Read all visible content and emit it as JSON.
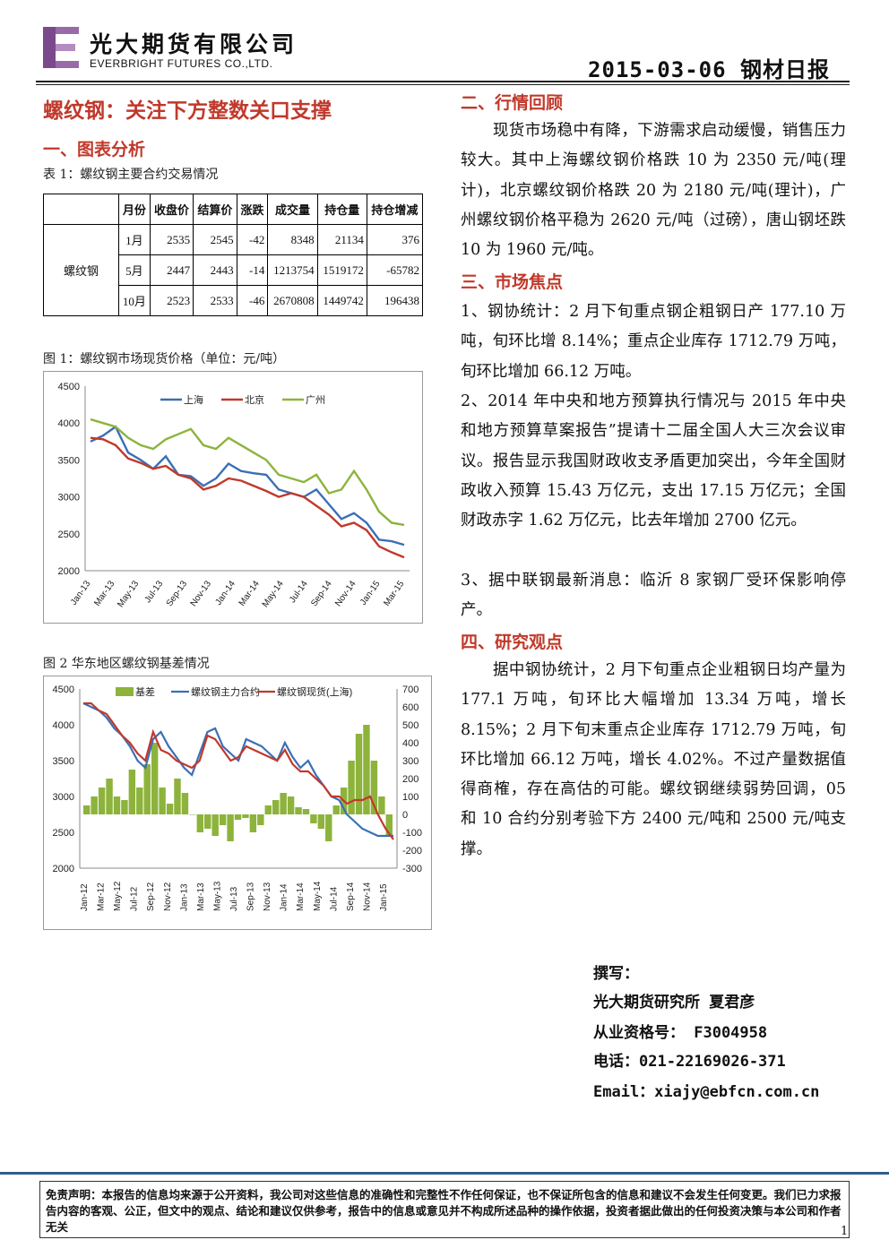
{
  "header": {
    "company_cn": "光大期货有限公司",
    "company_en": "EVERBRIGHT FUTURES CO.,LTD.",
    "date_report": "2015-03-06 钢材日报"
  },
  "title": "螺纹钢：关注下方整数关口支撑",
  "section1": {
    "heading": "一、图表分析",
    "table_caption": "表 1：螺纹钢主要合约交易情况"
  },
  "table": {
    "headers": [
      "月份",
      "收盘价",
      "结算价",
      "涨跌",
      "成交量",
      "持仓量",
      "持仓增减"
    ],
    "group_label": "螺纹钢",
    "rows": [
      [
        "1月",
        "2535",
        "2545",
        "-42",
        "8348",
        "21134",
        "376"
      ],
      [
        "5月",
        "2447",
        "2443",
        "-14",
        "1213754",
        "1519172",
        "-65782"
      ],
      [
        "10月",
        "2523",
        "2533",
        "-46",
        "2670808",
        "1449742",
        "196438"
      ]
    ]
  },
  "fig1": {
    "caption": "图 1：螺纹钢市场现货价格（单位：元/吨）"
  },
  "fig2": {
    "caption": "图 2 华东地区螺纹钢基差情况"
  },
  "chart_data": [
    {
      "type": "line",
      "title": "",
      "x_labels": [
        "Jan-13",
        "Mar-13",
        "May-13",
        "Jul-13",
        "Sep-13",
        "Nov-13",
        "Jan-14",
        "Mar-14",
        "May-14",
        "Jul-14",
        "Sep-14",
        "Nov-14",
        "Jan-15",
        "Mar-15"
      ],
      "ylim": [
        2000,
        4500
      ],
      "yticks": [
        "4500",
        "4000",
        "3500",
        "3000",
        "2500",
        "2000"
      ],
      "legend_position": "top",
      "series": [
        {
          "name": "上海",
          "color": "#3a6fb5",
          "values": [
            3750,
            3830,
            3950,
            3600,
            3500,
            3380,
            3550,
            3300,
            3280,
            3150,
            3250,
            3450,
            3350,
            3320,
            3300,
            3100,
            3050,
            3000,
            3100,
            2900,
            2700,
            2780,
            2650,
            2420,
            2400,
            2350
          ]
        },
        {
          "name": "北京",
          "color": "#c0392b",
          "values": [
            3800,
            3780,
            3700,
            3520,
            3460,
            3380,
            3420,
            3300,
            3250,
            3100,
            3150,
            3250,
            3220,
            3150,
            3080,
            3000,
            3050,
            3000,
            2880,
            2760,
            2600,
            2650,
            2550,
            2330,
            2250,
            2180
          ]
        },
        {
          "name": "广州",
          "color": "#8db33c",
          "values": [
            4050,
            4000,
            3950,
            3800,
            3700,
            3650,
            3780,
            3850,
            3920,
            3700,
            3650,
            3800,
            3700,
            3600,
            3500,
            3300,
            3250,
            3200,
            3300,
            3050,
            3100,
            3350,
            3100,
            2800,
            2650,
            2620
          ]
        }
      ]
    },
    {
      "type": "line",
      "title": "",
      "x_labels": [
        "Jan-12",
        "Mar-12",
        "May-12",
        "Jul-12",
        "Sep-12",
        "Nov-12",
        "Jan-13",
        "Mar-13",
        "May-13",
        "Jul-13",
        "Sep-13",
        "Nov-13",
        "Jan-14",
        "Mar-14",
        "May-14",
        "Jul-14",
        "Sep-14",
        "Nov-14",
        "Jan-15"
      ],
      "ylim_left": [
        2000,
        4500
      ],
      "ylim_right": [
        -300,
        700
      ],
      "yticks_left": [
        "4500",
        "4000",
        "3500",
        "3000",
        "2500",
        "2000"
      ],
      "yticks_right": [
        "700",
        "600",
        "500",
        "400",
        "300",
        "200",
        "100",
        "0",
        "-100",
        "-200",
        "-300"
      ],
      "legend_position": "top",
      "series": [
        {
          "name": "基差",
          "type": "bar",
          "axis": "right",
          "color": "#8db33c",
          "values": [
            50,
            100,
            150,
            200,
            100,
            80,
            250,
            150,
            280,
            400,
            150,
            60,
            200,
            120,
            0,
            -100,
            -80,
            -120,
            -60,
            -150,
            -30,
            -20,
            -100,
            -60,
            50,
            80,
            120,
            100,
            40,
            30,
            -50,
            -80,
            -150,
            50,
            150,
            300,
            450,
            500,
            300,
            100,
            -120
          ]
        },
        {
          "name": "螺纹钢主力合约",
          "axis": "left",
          "color": "#3a6fb5",
          "values": [
            4300,
            4250,
            4200,
            4100,
            3950,
            3850,
            3700,
            3500,
            3400,
            3800,
            3900,
            3700,
            3550,
            3400,
            3300,
            3600,
            3900,
            3950,
            3700,
            3600,
            3500,
            3800,
            3750,
            3700,
            3600,
            3500,
            3750,
            3550,
            3400,
            3500,
            3300,
            3150,
            3000,
            2950,
            2750,
            2650,
            2550,
            2500,
            2450,
            2450,
            2450
          ]
        },
        {
          "name": "螺纹钢现货(上海)",
          "axis": "left",
          "color": "#c0392b",
          "values": [
            4300,
            4300,
            4200,
            4150,
            4000,
            3850,
            3750,
            3600,
            3500,
            3900,
            3650,
            3600,
            3500,
            3450,
            3400,
            3500,
            3850,
            3800,
            3650,
            3500,
            3550,
            3700,
            3650,
            3600,
            3550,
            3500,
            3650,
            3450,
            3350,
            3350,
            3250,
            3150,
            3000,
            3000,
            2900,
            2950,
            2950,
            3000,
            2750,
            2550,
            2400
          ]
        }
      ]
    }
  ],
  "section2": {
    "heading": "二、行情回顾",
    "text": "　　现货市场稳中有降，下游需求启动缓慢，销售压力较大。其中上海螺纹钢价格跌 10 为 2350 元/吨(理计)，北京螺纹钢价格跌 20 为 2180 元/吨(理计)，广州螺纹钢价格平稳为 2620 元/吨（过磅），唐山钢坯跌 10 为 1960 元/吨。"
  },
  "section3": {
    "heading": "三、市场焦点",
    "items": [
      "1、钢协统计：2 月下旬重点钢企粗钢日产 177.10 万吨，旬环比增 8.14%；重点企业库存 1712.79 万吨，旬环比增加 66.12 万吨。",
      "2、2014 年中央和地方预算执行情况与 2015 年中央和地方预算草案报告”提请十二届全国人大三次会议审议。报告显示我国财政收支矛盾更加突出，今年全国财政收入预算 15.43 万亿元，支出 17.15 万亿元；全国财政赤字 1.62 万亿元，比去年增加 2700 亿元。",
      "3、据中联钢最新消息：临沂 8 家钢厂受环保影响停产。"
    ]
  },
  "section4": {
    "heading": "四、研究观点",
    "text": "　　据中钢协统计，2 月下旬重点企业粗钢日均产量为 177.1 万吨，旬环比大幅增加 13.34 万吨，增长 8.15%；2 月下旬末重点企业库存 1712.79 万吨，旬环比增加 66.12 万吨，增长 4.02%。不过产量数据值得商榷，存在高估的可能。螺纹钢继续弱势回调，05 和 10 合约分别考验下方 2400 元/吨和 2500 元/吨支撑。"
  },
  "author": {
    "label": "撰写：",
    "org_name": "光大期货研究所 夏君彦",
    "license": "从业资格号： F3004958",
    "phone": "电话：021-22169026-371",
    "email": "Email：xiajy@ebfcn.com.cn"
  },
  "disclaimer": "免责声明：本报告的信息均来源于公开资料，我公司对这些信息的准确性和完整性不作任何保证，也不保证所包含的信息和建议不会发生任何变更。我们已力求报告内容的客观、公正，但文中的观点、结论和建议仅供参考，报告中的信息或意见并不构成所述品种的操作依据，投资者据此做出的任何投资决策与本公司和作者无关",
  "page_number": "1"
}
